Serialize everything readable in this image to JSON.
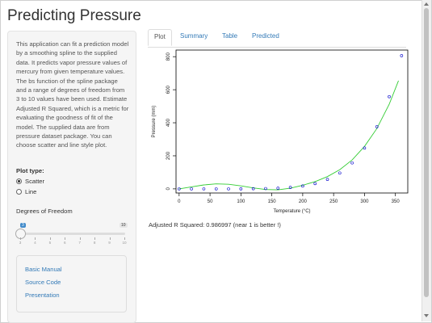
{
  "app": {
    "title": "Predicting Pressure"
  },
  "sidebar": {
    "description": "This application can fit a prediction model by a smoothing spline to the supplied data. It predicts vapor pressure values of mercury from given temperature values. The bs function of the spline package and a range of degrees of freedom from 3 to 10 values have been used. Estimate Adjusted R Squared, which is a metric for evaluating the goodness of fit of the model. The supplied data are from pressure dataset package. You can choose scatter and line style plot.",
    "plot_type": {
      "label": "Plot type:",
      "options": [
        {
          "label": "Scatter",
          "selected": true
        },
        {
          "label": "Line",
          "selected": false
        }
      ]
    },
    "dof": {
      "label": "Degrees of Freedom",
      "min": 3,
      "max": 10,
      "value": 3,
      "min_label": "3",
      "max_label": "10",
      "tick_labels": [
        "3",
        "4",
        "5",
        "6",
        "7",
        "8",
        "9",
        "10"
      ]
    },
    "links": [
      "Basic Manual",
      "Source Code",
      "Presentation"
    ]
  },
  "tabs": [
    {
      "label": "Plot",
      "active": true
    },
    {
      "label": "Summary",
      "active": false
    },
    {
      "label": "Table",
      "active": false
    },
    {
      "label": "Predicted",
      "active": false
    }
  ],
  "chart_data": {
    "type": "scatter",
    "xlabel": "Temperature (°C)",
    "ylabel": "Pressure (mm)",
    "xlim": [
      -5,
      370
    ],
    "ylim": [
      -25,
      840
    ],
    "x_ticks": [
      "0",
      "50",
      "100",
      "150",
      "200",
      "250",
      "300",
      "350"
    ],
    "y_ticks": [
      "0",
      "200",
      "400",
      "600",
      "800"
    ],
    "points": [
      [
        0,
        0.0002
      ],
      [
        20,
        0.0012
      ],
      [
        40,
        0.006
      ],
      [
        60,
        0.03
      ],
      [
        80,
        0.09
      ],
      [
        100,
        0.27
      ],
      [
        120,
        0.75
      ],
      [
        140,
        1.85
      ],
      [
        160,
        4.2
      ],
      [
        180,
        8.8
      ],
      [
        200,
        17.3
      ],
      [
        220,
        32.1
      ],
      [
        240,
        57
      ],
      [
        260,
        96
      ],
      [
        280,
        157
      ],
      [
        300,
        247
      ],
      [
        320,
        376
      ],
      [
        340,
        558
      ],
      [
        360,
        806
      ]
    ],
    "fit": [
      [
        0,
        0
      ],
      [
        20,
        12
      ],
      [
        40,
        24
      ],
      [
        60,
        30
      ],
      [
        80,
        28
      ],
      [
        100,
        18
      ],
      [
        120,
        6
      ],
      [
        140,
        -4
      ],
      [
        160,
        -6
      ],
      [
        180,
        4
      ],
      [
        200,
        22
      ],
      [
        220,
        44
      ],
      [
        240,
        74
      ],
      [
        260,
        116
      ],
      [
        280,
        175
      ],
      [
        300,
        257
      ],
      [
        320,
        365
      ],
      [
        340,
        512
      ],
      [
        355,
        655
      ]
    ],
    "point_color": "#0000cc",
    "fit_color": "#33cc33"
  },
  "result": {
    "text": "Adjusted R Squared: 0.986997 (near 1 is better !)"
  }
}
